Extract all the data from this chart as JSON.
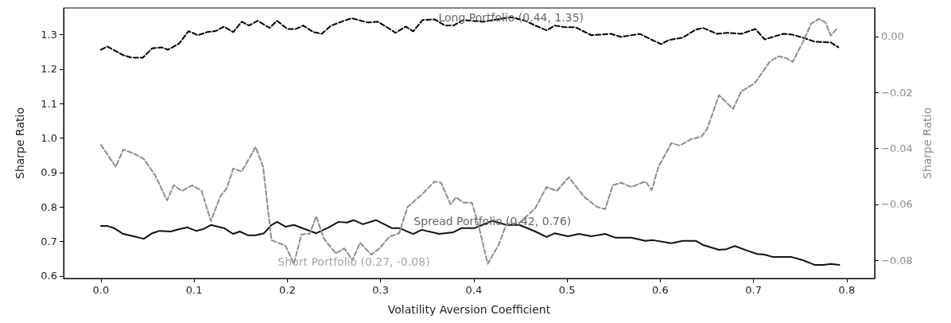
{
  "chart_data": {
    "type": "line",
    "xlabel": "Volatility Aversion Coefficient",
    "ylabel": "Sharpe Ratio",
    "y2label": "Sharpe Ratio",
    "xlim": [
      -0.04,
      0.83
    ],
    "xticks": [
      {
        "value": 0,
        "label": "0.0"
      },
      0.1,
      0.2,
      0.3,
      0.4,
      0.5,
      0.6,
      0.7,
      0.8
    ],
    "ylim": [
      0.593,
      1.377
    ],
    "yticks": [
      0.6,
      0.7,
      0.8,
      0.9,
      {
        "value": 1,
        "label": "1.0"
      },
      1.1,
      1.2,
      1.3
    ],
    "y2lim": [
      -0.0865,
      0.0102
    ],
    "y2ticks": [
      {
        "value": -0.08,
        "label": "−0.08"
      },
      {
        "value": -0.06,
        "label": "−0.06"
      },
      {
        "value": -0.04,
        "label": "−0.04"
      },
      {
        "value": -0.02,
        "label": "−0.02"
      },
      {
        "value": 0,
        "label": "0.00"
      }
    ],
    "grid": false,
    "marker": "none",
    "annotations": [
      {
        "text": "Long Portfolio (0.44, 1.35)",
        "x": 0.44,
        "y": 1.35
      },
      {
        "text": "Spread Portfolio (0.42, 0.76)",
        "x": 0.42,
        "y": 0.76
      },
      "Short Portfolio (0.27, -0.08)"
    ],
    "series": [
      {
        "color": "#000000",
        "line_style": "dashed",
        "x": [
          0,
          0.007,
          0.024,
          0.033,
          0.045,
          0.055,
          0.065,
          0.072,
          0.084,
          0.094,
          0.104,
          0.114,
          0.123,
          0.132,
          0.142,
          0.151,
          0.159,
          0.168,
          0.181,
          0.189,
          0.2,
          0.209,
          0.217,
          0.228,
          0.237,
          0.247,
          0.261,
          0.269,
          0.286,
          0.297,
          0.307,
          0.316,
          0.327,
          0.335,
          0.345,
          0.358,
          0.369,
          0.378,
          0.389,
          0.41,
          0.421,
          0.432,
          0.44,
          0.455,
          0.466,
          0.478,
          0.487,
          0.498,
          0.509,
          0.526,
          0.547,
          0.558,
          0.578,
          0.59,
          0.601,
          0.609,
          0.624,
          0.638,
          0.646,
          0.661,
          0.672,
          0.687,
          0.702,
          0.712,
          0.732,
          0.741,
          0.753,
          0.766,
          0.783,
          0.791
        ],
        "values": [
          1.256,
          1.265,
          1.24,
          1.233,
          1.233,
          1.26,
          1.263,
          1.256,
          1.274,
          1.31,
          1.298,
          1.307,
          1.31,
          1.323,
          1.307,
          1.337,
          1.326,
          1.34,
          1.319,
          1.34,
          1.316,
          1.316,
          1.326,
          1.307,
          1.302,
          1.326,
          1.34,
          1.347,
          1.335,
          1.337,
          1.321,
          1.305,
          1.323,
          1.309,
          1.342,
          1.344,
          1.326,
          1.326,
          1.342,
          1.337,
          1.342,
          1.347,
          1.35,
          1.34,
          1.326,
          1.312,
          1.326,
          1.321,
          1.321,
          1.298,
          1.302,
          1.293,
          1.302,
          1.286,
          1.272,
          1.284,
          1.291,
          1.314,
          1.319,
          1.302,
          1.305,
          1.302,
          1.316,
          1.286,
          1.302,
          1.3,
          1.291,
          1.279,
          1.277,
          1.263
        ]
      },
      {
        "color": "#111111",
        "line_style": "solid",
        "x": [
          0,
          0.007,
          0.014,
          0.024,
          0.035,
          0.046,
          0.055,
          0.063,
          0.075,
          0.084,
          0.093,
          0.102,
          0.11,
          0.118,
          0.132,
          0.142,
          0.149,
          0.158,
          0.166,
          0.175,
          0.183,
          0.189,
          0.198,
          0.207,
          0.231,
          0.243,
          0.255,
          0.264,
          0.271,
          0.281,
          0.295,
          0.312,
          0.32,
          0.335,
          0.344,
          0.363,
          0.378,
          0.387,
          0.401,
          0.42,
          0.435,
          0.449,
          0.466,
          0.478,
          0.487,
          0.501,
          0.513,
          0.526,
          0.541,
          0.552,
          0.569,
          0.584,
          0.592,
          0.612,
          0.624,
          0.638,
          0.646,
          0.663,
          0.671,
          0.68,
          0.693,
          0.704,
          0.712,
          0.721,
          0.741,
          0.753,
          0.766,
          0.775,
          0.783,
          0.792
        ],
        "values": [
          0.745,
          0.745,
          0.739,
          0.722,
          0.715,
          0.708,
          0.724,
          0.731,
          0.729,
          0.736,
          0.741,
          0.731,
          0.736,
          0.748,
          0.739,
          0.722,
          0.729,
          0.718,
          0.718,
          0.724,
          0.748,
          0.757,
          0.743,
          0.748,
          0.724,
          0.739,
          0.757,
          0.755,
          0.762,
          0.75,
          0.762,
          0.739,
          0.739,
          0.722,
          0.734,
          0.722,
          0.727,
          0.739,
          0.739,
          0.76,
          0.748,
          0.748,
          0.729,
          0.713,
          0.724,
          0.715,
          0.722,
          0.715,
          0.722,
          0.711,
          0.711,
          0.702,
          0.704,
          0.695,
          0.702,
          0.702,
          0.69,
          0.676,
          0.678,
          0.687,
          0.674,
          0.664,
          0.662,
          0.655,
          0.655,
          0.646,
          0.632,
          0.632,
          0.635,
          0.632
        ]
      },
      {
        "color": "#8c8c8c",
        "line_style": "dashed",
        "axis": "y2",
        "x": [
          0,
          0.016,
          0.024,
          0.035,
          0.046,
          0.058,
          0.071,
          0.078,
          0.087,
          0.098,
          0.108,
          0.118,
          0.128,
          0.135,
          0.142,
          0.151,
          0.166,
          0.174,
          0.183,
          0.198,
          0.207,
          0.215,
          0.224,
          0.231,
          0.239,
          0.252,
          0.261,
          0.27,
          0.278,
          0.29,
          0.299,
          0.309,
          0.32,
          0.329,
          0.344,
          0.358,
          0.365,
          0.375,
          0.381,
          0.389,
          0.398,
          0.405,
          0.415,
          0.427,
          0.435,
          0.449,
          0.466,
          0.478,
          0.489,
          0.502,
          0.518,
          0.532,
          0.541,
          0.549,
          0.558,
          0.569,
          0.584,
          0.591,
          0.598,
          0.612,
          0.621,
          0.633,
          0.644,
          0.65,
          0.663,
          0.678,
          0.687,
          0.701,
          0.718,
          0.727,
          0.735,
          0.742,
          0.753,
          0.762,
          0.77,
          0.777,
          0.783,
          0.789
        ],
        "values": [
          -0.0387,
          -0.0466,
          -0.0404,
          -0.0418,
          -0.0438,
          -0.0495,
          -0.0586,
          -0.0532,
          -0.0552,
          -0.0532,
          -0.0552,
          -0.066,
          -0.0572,
          -0.0543,
          -0.0472,
          -0.0483,
          -0.0395,
          -0.0466,
          -0.0728,
          -0.0748,
          -0.0813,
          -0.0708,
          -0.0705,
          -0.0643,
          -0.0722,
          -0.0776,
          -0.0757,
          -0.08,
          -0.0737,
          -0.078,
          -0.0757,
          -0.0717,
          -0.0703,
          -0.0609,
          -0.0566,
          -0.0518,
          -0.0523,
          -0.06,
          -0.0575,
          -0.0594,
          -0.0594,
          -0.0674,
          -0.0813,
          -0.0742,
          -0.0671,
          -0.0666,
          -0.0614,
          -0.0538,
          -0.0552,
          -0.0503,
          -0.0572,
          -0.0609,
          -0.0617,
          -0.0532,
          -0.0523,
          -0.0538,
          -0.0518,
          -0.0549,
          -0.0466,
          -0.0381,
          -0.039,
          -0.0367,
          -0.0358,
          -0.0333,
          -0.021,
          -0.0259,
          -0.0196,
          -0.0168,
          -0.0088,
          -0.0071,
          -0.0077,
          -0.0091,
          -0.002,
          0.0046,
          0.0063,
          0.0051,
          0.0003,
          0.0026
        ]
      }
    ]
  }
}
